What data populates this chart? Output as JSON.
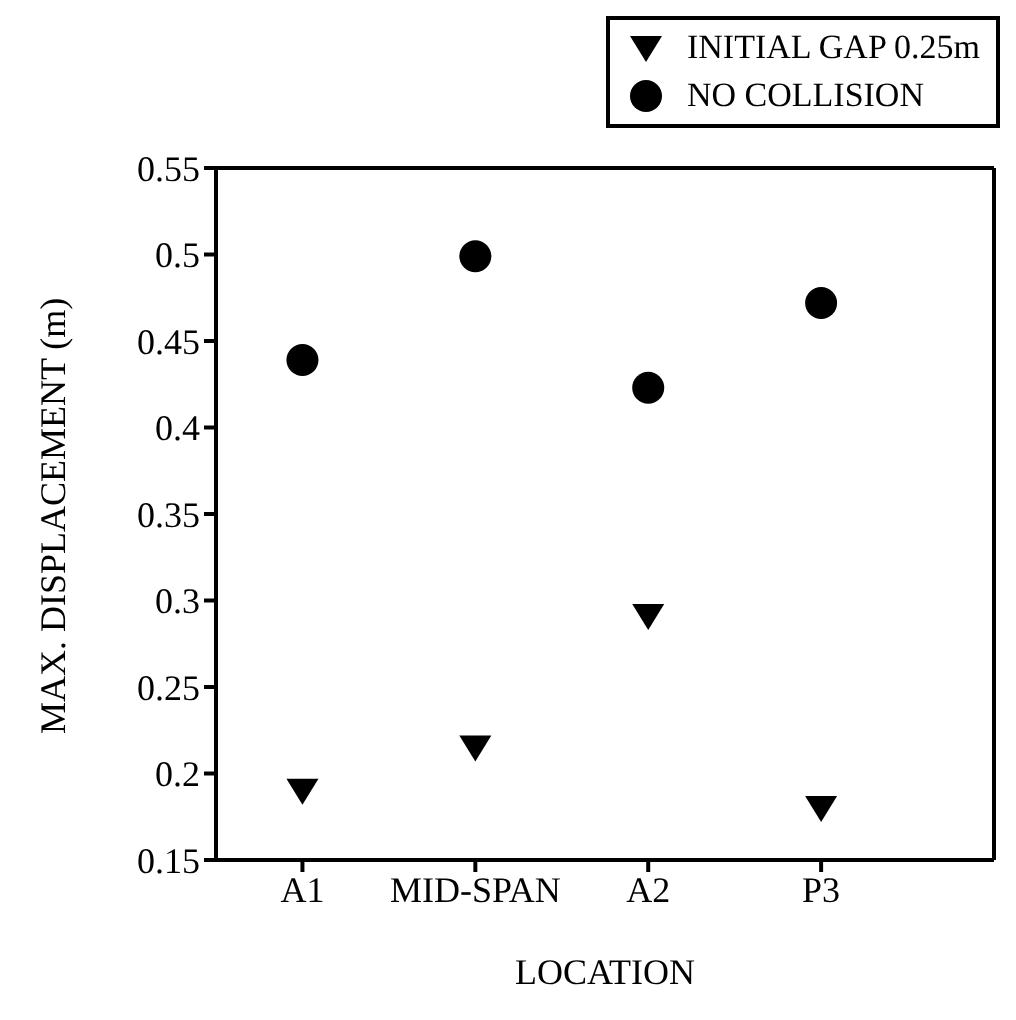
{
  "chart_data": {
    "type": "scatter",
    "xlabel": "LOCATION",
    "ylabel": "MAX. DISPLACEMENT (m)",
    "categories": [
      "A1",
      "MID-SPAN",
      "A2",
      "P3"
    ],
    "series": [
      {
        "name": "INITIAL GAP 0.25m",
        "color": "#000000",
        "marker": "triangle",
        "values": [
          0.19,
          0.215,
          0.291,
          0.18
        ]
      },
      {
        "name": "NO COLLISION",
        "color": "#000000",
        "marker": "circle",
        "values": [
          0.439,
          0.499,
          0.423,
          0.472
        ]
      }
    ],
    "ylim": [
      0.15,
      0.55
    ],
    "yticks": [
      0.15,
      0.2,
      0.25,
      0.3,
      0.35,
      0.4,
      0.45,
      0.5,
      0.55
    ],
    "legend": "top right"
  }
}
